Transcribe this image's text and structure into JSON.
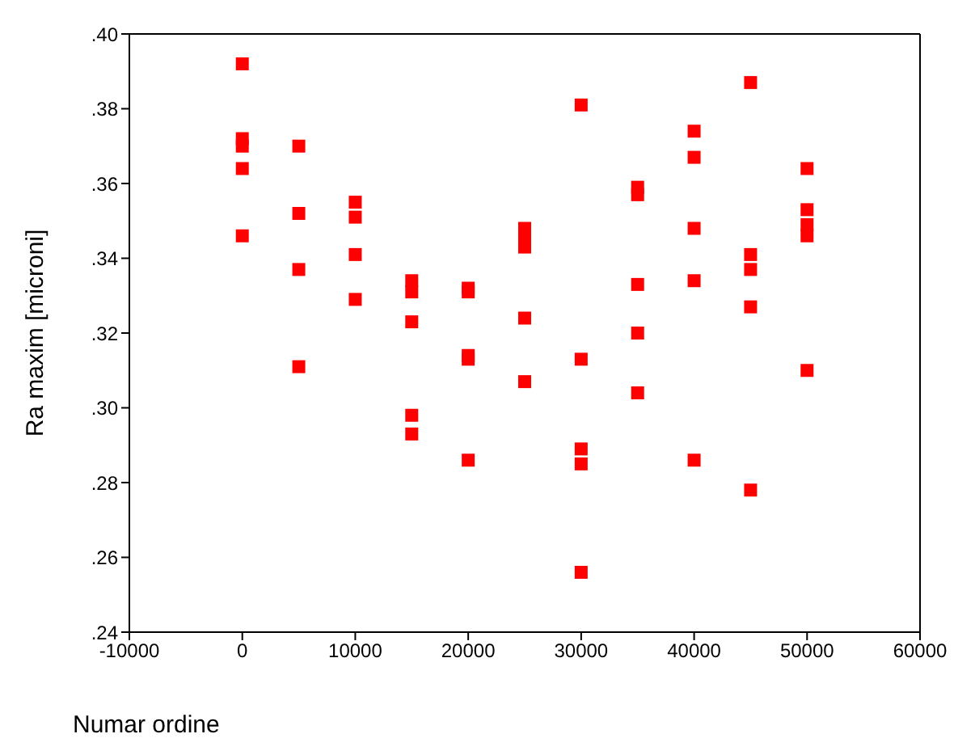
{
  "chart_data": {
    "type": "scatter",
    "xlabel": "Numar ordine",
    "ylabel": "Ra maxim [microni]",
    "x": [
      0,
      0,
      0,
      0,
      0,
      5000,
      5000,
      5000,
      5000,
      10000,
      10000,
      10000,
      10000,
      15000,
      15000,
      15000,
      15000,
      15000,
      20000,
      20000,
      20000,
      20000,
      20000,
      25000,
      25000,
      25000,
      25000,
      25000,
      30000,
      30000,
      30000,
      30000,
      30000,
      35000,
      35000,
      35000,
      35000,
      35000,
      40000,
      40000,
      40000,
      40000,
      40000,
      45000,
      45000,
      45000,
      45000,
      45000,
      50000,
      50000,
      50000,
      50000,
      50000
    ],
    "series": [
      {
        "color": "#ff0000",
        "values": [
          0.392,
          0.372,
          0.37,
          0.364,
          0.346,
          0.37,
          0.352,
          0.337,
          0.311,
          0.355,
          0.351,
          0.341,
          0.329,
          0.334,
          0.331,
          0.323,
          0.298,
          0.293,
          0.332,
          0.331,
          0.314,
          0.313,
          0.286,
          0.348,
          0.345,
          0.343,
          0.324,
          0.307,
          0.381,
          0.313,
          0.289,
          0.285,
          0.256,
          0.359,
          0.357,
          0.333,
          0.32,
          0.304,
          0.374,
          0.367,
          0.348,
          0.334,
          0.286,
          0.387,
          0.341,
          0.337,
          0.327,
          0.278,
          0.364,
          0.353,
          0.349,
          0.346,
          0.31
        ]
      }
    ],
    "xlim": [
      -10000,
      60000
    ],
    "xticks": [
      -10000,
      0,
      10000,
      20000,
      30000,
      40000,
      50000,
      60000
    ],
    "ylim": [
      0.24,
      0.4
    ],
    "yticks": [
      {
        "value": 0.24,
        "label": ".24"
      },
      {
        "value": 0.26,
        "label": ".26"
      },
      {
        "value": 0.28,
        "label": ".28"
      },
      {
        "value": 0.3,
        "label": ".30"
      },
      {
        "value": 0.32,
        "label": ".32"
      },
      {
        "value": 0.34,
        "label": ".34"
      },
      {
        "value": 0.36,
        "label": ".36"
      },
      {
        "value": 0.38,
        "label": ".38"
      },
      {
        "value": 0.4,
        "label": ".40"
      }
    ],
    "legend": false,
    "marker": "square"
  }
}
